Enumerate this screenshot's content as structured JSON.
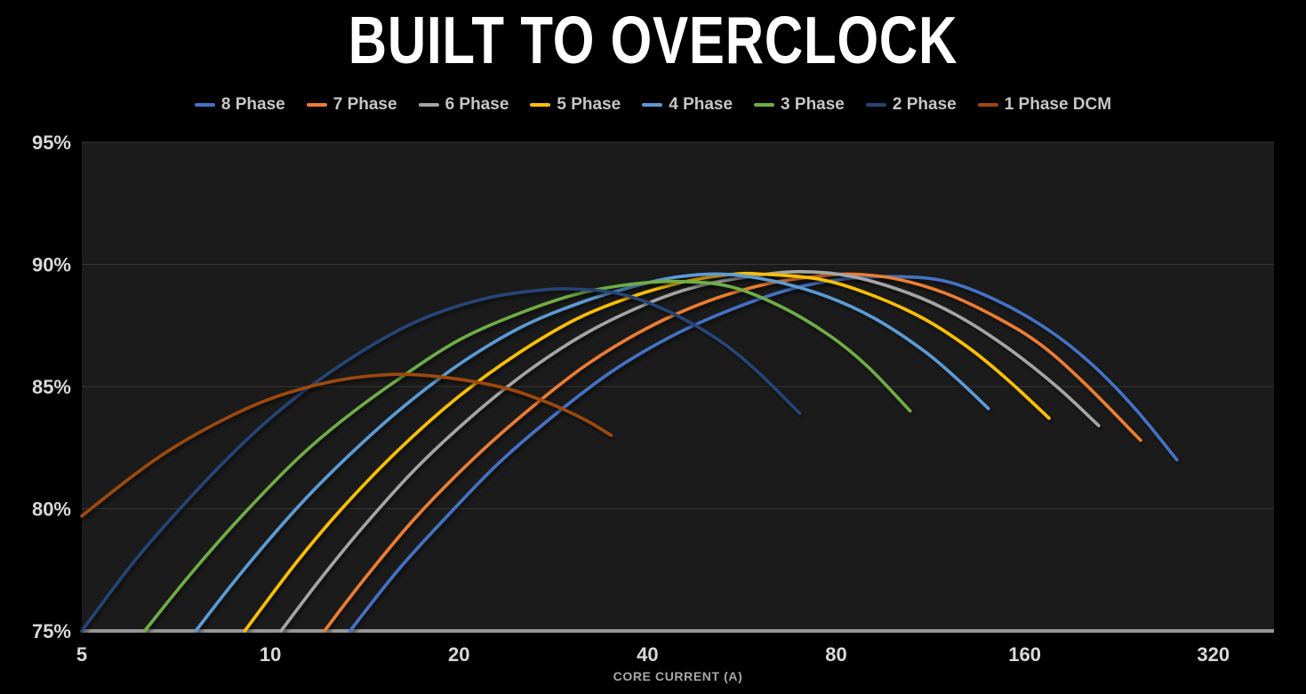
{
  "title": "BUILT TO OVERCLOCK",
  "chart_data": {
    "type": "line",
    "title": "BUILT TO OVERCLOCK",
    "xlabel": "CORE CURRENT (A)",
    "ylabel": "",
    "x_scale": "log2",
    "x_range": [
      5,
      400
    ],
    "x_ticks": [
      5,
      10,
      20,
      40,
      80,
      160,
      320
    ],
    "y_range": [
      75,
      95
    ],
    "y_ticks": [
      95,
      90,
      85,
      80,
      75
    ],
    "y_tick_suffix": "%",
    "grid": "horizontal",
    "legend_position": "top",
    "series": [
      {
        "name": "8 Phase",
        "color": "#4472C4",
        "points": [
          [
            13.4,
            75.0
          ],
          [
            16,
            77.5
          ],
          [
            19,
            79.6
          ],
          [
            23,
            81.8
          ],
          [
            28,
            83.7
          ],
          [
            35,
            85.6
          ],
          [
            44,
            87.1
          ],
          [
            55,
            88.2
          ],
          [
            68,
            89.0
          ],
          [
            82,
            89.4
          ],
          [
            100,
            89.5
          ],
          [
            120,
            89.3
          ],
          [
            145,
            88.5
          ],
          [
            175,
            87.3
          ],
          [
            205,
            85.9
          ],
          [
            240,
            84.1
          ],
          [
            280,
            82.0
          ]
        ]
      },
      {
        "name": "7 Phase",
        "color": "#ED7D31",
        "points": [
          [
            12.2,
            75.0
          ],
          [
            14,
            77.0
          ],
          [
            17,
            79.6
          ],
          [
            21,
            82.0
          ],
          [
            26,
            84.1
          ],
          [
            32,
            85.9
          ],
          [
            40,
            87.4
          ],
          [
            50,
            88.5
          ],
          [
            62,
            89.2
          ],
          [
            74,
            89.5
          ],
          [
            85,
            89.6
          ],
          [
            100,
            89.4
          ],
          [
            120,
            88.8
          ],
          [
            145,
            87.8
          ],
          [
            170,
            86.7
          ],
          [
            200,
            85.1
          ],
          [
            245,
            82.8
          ]
        ]
      },
      {
        "name": "6 Phase",
        "color": "#A5A5A5",
        "points": [
          [
            10.4,
            75.0
          ],
          [
            12,
            77.1
          ],
          [
            14,
            79.2
          ],
          [
            17,
            81.6
          ],
          [
            21,
            83.8
          ],
          [
            26,
            85.7
          ],
          [
            32,
            87.2
          ],
          [
            40,
            88.4
          ],
          [
            48,
            89.1
          ],
          [
            58,
            89.5
          ],
          [
            70,
            89.7
          ],
          [
            85,
            89.5
          ],
          [
            105,
            88.8
          ],
          [
            125,
            87.9
          ],
          [
            150,
            86.6
          ],
          [
            180,
            85.0
          ],
          [
            210,
            83.4
          ]
        ]
      },
      {
        "name": "5 Phase",
        "color": "#FFC000",
        "points": [
          [
            9.1,
            75.0
          ],
          [
            11,
            77.8
          ],
          [
            13,
            80.0
          ],
          [
            16,
            82.4
          ],
          [
            20,
            84.6
          ],
          [
            25,
            86.4
          ],
          [
            31,
            87.8
          ],
          [
            38,
            88.7
          ],
          [
            46,
            89.3
          ],
          [
            55,
            89.6
          ],
          [
            61,
            89.6
          ],
          [
            75,
            89.4
          ],
          [
            90,
            88.8
          ],
          [
            110,
            87.8
          ],
          [
            130,
            86.6
          ],
          [
            150,
            85.3
          ],
          [
            175,
            83.7
          ]
        ]
      },
      {
        "name": "4 Phase",
        "color": "#5B9BD5",
        "points": [
          [
            7.6,
            75.0
          ],
          [
            9,
            77.4
          ],
          [
            11,
            80.0
          ],
          [
            13,
            81.9
          ],
          [
            16,
            84.0
          ],
          [
            20,
            85.9
          ],
          [
            25,
            87.4
          ],
          [
            31,
            88.4
          ],
          [
            38,
            89.1
          ],
          [
            45,
            89.5
          ],
          [
            53,
            89.6
          ],
          [
            64,
            89.3
          ],
          [
            77,
            88.7
          ],
          [
            92,
            87.8
          ],
          [
            110,
            86.5
          ],
          [
            125,
            85.3
          ],
          [
            140,
            84.1
          ]
        ]
      },
      {
        "name": "3 Phase",
        "color": "#70AD47",
        "points": [
          [
            6.3,
            75.0
          ],
          [
            7.5,
            77.4
          ],
          [
            9,
            79.7
          ],
          [
            11,
            82.0
          ],
          [
            13,
            83.6
          ],
          [
            16,
            85.3
          ],
          [
            20,
            86.9
          ],
          [
            25,
            88.0
          ],
          [
            31,
            88.8
          ],
          [
            38,
            89.2
          ],
          [
            45,
            89.3
          ],
          [
            54,
            89.1
          ],
          [
            65,
            88.3
          ],
          [
            78,
            87.1
          ],
          [
            90,
            85.8
          ],
          [
            105,
            84.0
          ]
        ]
      },
      {
        "name": "2 Phase",
        "color": "#264478",
        "points": [
          [
            5,
            75.0
          ],
          [
            6,
            77.7
          ],
          [
            7,
            79.7
          ],
          [
            8.5,
            82.0
          ],
          [
            10,
            83.7
          ],
          [
            12,
            85.3
          ],
          [
            15,
            86.9
          ],
          [
            18,
            87.9
          ],
          [
            22,
            88.6
          ],
          [
            26,
            88.9
          ],
          [
            30,
            89.0
          ],
          [
            36,
            88.8
          ],
          [
            43,
            88.1
          ],
          [
            52,
            86.9
          ],
          [
            60,
            85.6
          ],
          [
            70,
            83.9
          ]
        ]
      },
      {
        "name": "1 Phase DCM",
        "color": "#9E480E",
        "points": [
          [
            5,
            79.7
          ],
          [
            6,
            81.3
          ],
          [
            7,
            82.5
          ],
          [
            8.5,
            83.7
          ],
          [
            10,
            84.5
          ],
          [
            12,
            85.1
          ],
          [
            14,
            85.4
          ],
          [
            16.5,
            85.5
          ],
          [
            20,
            85.3
          ],
          [
            24,
            84.9
          ],
          [
            28,
            84.3
          ],
          [
            32,
            83.6
          ],
          [
            35,
            83.0
          ]
        ]
      }
    ]
  },
  "colors": {
    "background": "#000000",
    "plot_background": "#1B1B1B",
    "gridline": "#373737",
    "axis_line": "#969696",
    "tick_label": "#D9D9D9",
    "axis_title": "#A8A8A8",
    "legend_text": "#C6C6C6",
    "title_text": "#FFFFFF"
  }
}
